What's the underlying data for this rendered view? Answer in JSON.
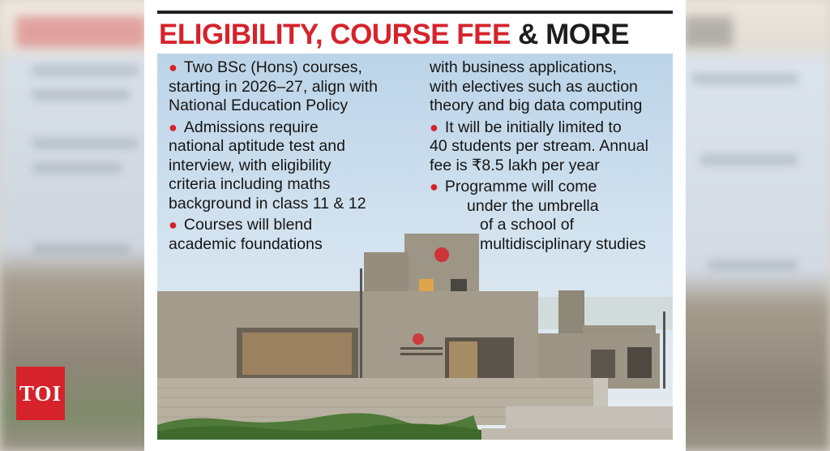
{
  "title": {
    "part1": "ELIGIBILITY, COURSE FEE",
    "part2": "& MORE"
  },
  "left_column": [
    {
      "lines": [
        "Two BSc (Hons) courses,",
        "starting in 2026–27, align with",
        "National Education Policy"
      ]
    },
    {
      "lines": [
        "Admissions require",
        "national aptitude test and",
        "interview, with eligibility",
        "criteria including maths",
        "background in class 11 & 12"
      ]
    },
    {
      "lines": [
        "Courses will blend",
        "academic foundations"
      ]
    }
  ],
  "right_column": {
    "continuation": [
      "with business applications,",
      "with electives such as auction",
      "theory and big data computing"
    ],
    "bullets": [
      {
        "lines": [
          "It will be initially limited to",
          "40 students per stream. Annual",
          "fee is ₹8.5 lakh per year"
        ]
      },
      {
        "lines": [
          "Programme will come",
          "under the umbrella",
          "of a school of",
          "multidisciplinary studies"
        ]
      }
    ]
  },
  "logo": "TOI",
  "colors": {
    "accent": "#d6232b",
    "text": "#151515"
  }
}
